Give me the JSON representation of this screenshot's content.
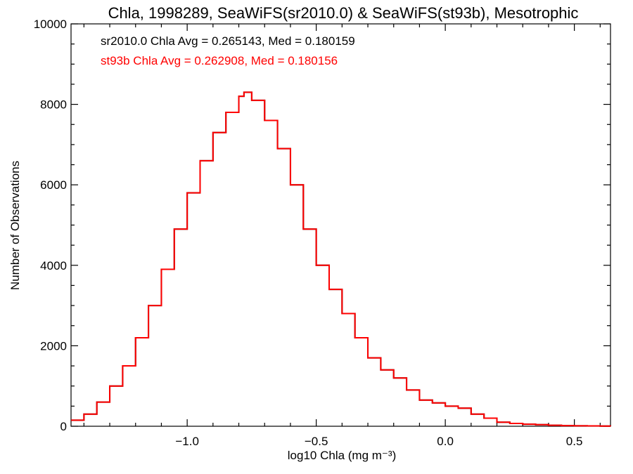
{
  "chart_data": {
    "type": "line",
    "step": true,
    "title": "Chla, 1998289, SeaWiFS(sr2010.0) & SeaWiFS(st93b), Mesotrophic",
    "xlabel": "log10 Chla (mg m⁻³)",
    "ylabel": "Number of Observations",
    "xlim": [
      -1.45,
      0.64
    ],
    "ylim": [
      0,
      10000
    ],
    "xticks": [
      -1.0,
      -0.5,
      0.0,
      0.5
    ],
    "xtick_labels": [
      "−1.0",
      "−0.5",
      "0.0",
      "0.5"
    ],
    "yticks": [
      0,
      2000,
      4000,
      6000,
      8000,
      10000
    ],
    "ytick_labels": [
      "0",
      "2000",
      "4000",
      "6000",
      "8000",
      "10000"
    ],
    "grid": false,
    "annotations": [
      {
        "text": "sr2010.0 Chla Avg = 0.265143, Med = 0.180159",
        "color": "#000000"
      },
      {
        "text": "st93b Chla Avg = 0.262908, Med = 0.180156",
        "color": "#ff0000"
      }
    ],
    "series": [
      {
        "label": "sr2010.0",
        "color": "#000000",
        "x": [
          -1.45,
          -1.4,
          -1.35,
          -1.3,
          -1.25,
          -1.2,
          -1.15,
          -1.1,
          -1.05,
          -1.0,
          -0.95,
          -0.9,
          -0.85,
          -0.8,
          -0.78,
          -0.75,
          -0.7,
          -0.65,
          -0.6,
          -0.55,
          -0.5,
          -0.45,
          -0.4,
          -0.35,
          -0.3,
          -0.25,
          -0.2,
          -0.15,
          -0.1,
          -0.05,
          0.0,
          0.05,
          0.1,
          0.15,
          0.2,
          0.25,
          0.3,
          0.35,
          0.4,
          0.45,
          0.5,
          0.55,
          0.6,
          0.64
        ],
        "y": [
          150,
          300,
          600,
          1000,
          1500,
          2200,
          3000,
          3900,
          4900,
          5800,
          6600,
          7300,
          7800,
          8200,
          8300,
          8100,
          7600,
          6900,
          6000,
          4900,
          4000,
          3400,
          2800,
          2200,
          1700,
          1400,
          1200,
          900,
          650,
          580,
          500,
          450,
          300,
          200,
          100,
          70,
          50,
          40,
          25,
          15,
          10,
          8,
          5,
          3
        ]
      },
      {
        "label": "st93b",
        "color": "#ff0000",
        "x": [
          -1.45,
          -1.4,
          -1.35,
          -1.3,
          -1.25,
          -1.2,
          -1.15,
          -1.1,
          -1.05,
          -1.0,
          -0.95,
          -0.9,
          -0.85,
          -0.8,
          -0.78,
          -0.75,
          -0.7,
          -0.65,
          -0.6,
          -0.55,
          -0.5,
          -0.45,
          -0.4,
          -0.35,
          -0.3,
          -0.25,
          -0.2,
          -0.15,
          -0.1,
          -0.05,
          0.0,
          0.05,
          0.1,
          0.15,
          0.2,
          0.25,
          0.3,
          0.35,
          0.4,
          0.45,
          0.5,
          0.55,
          0.6,
          0.64
        ],
        "y": [
          150,
          300,
          600,
          1000,
          1500,
          2200,
          3000,
          3900,
          4900,
          5800,
          6600,
          7300,
          7800,
          8200,
          8300,
          8100,
          7600,
          6900,
          6000,
          4900,
          4000,
          3400,
          2800,
          2200,
          1700,
          1400,
          1200,
          900,
          650,
          580,
          500,
          450,
          300,
          200,
          100,
          70,
          50,
          40,
          25,
          15,
          10,
          8,
          5,
          3
        ]
      }
    ]
  }
}
